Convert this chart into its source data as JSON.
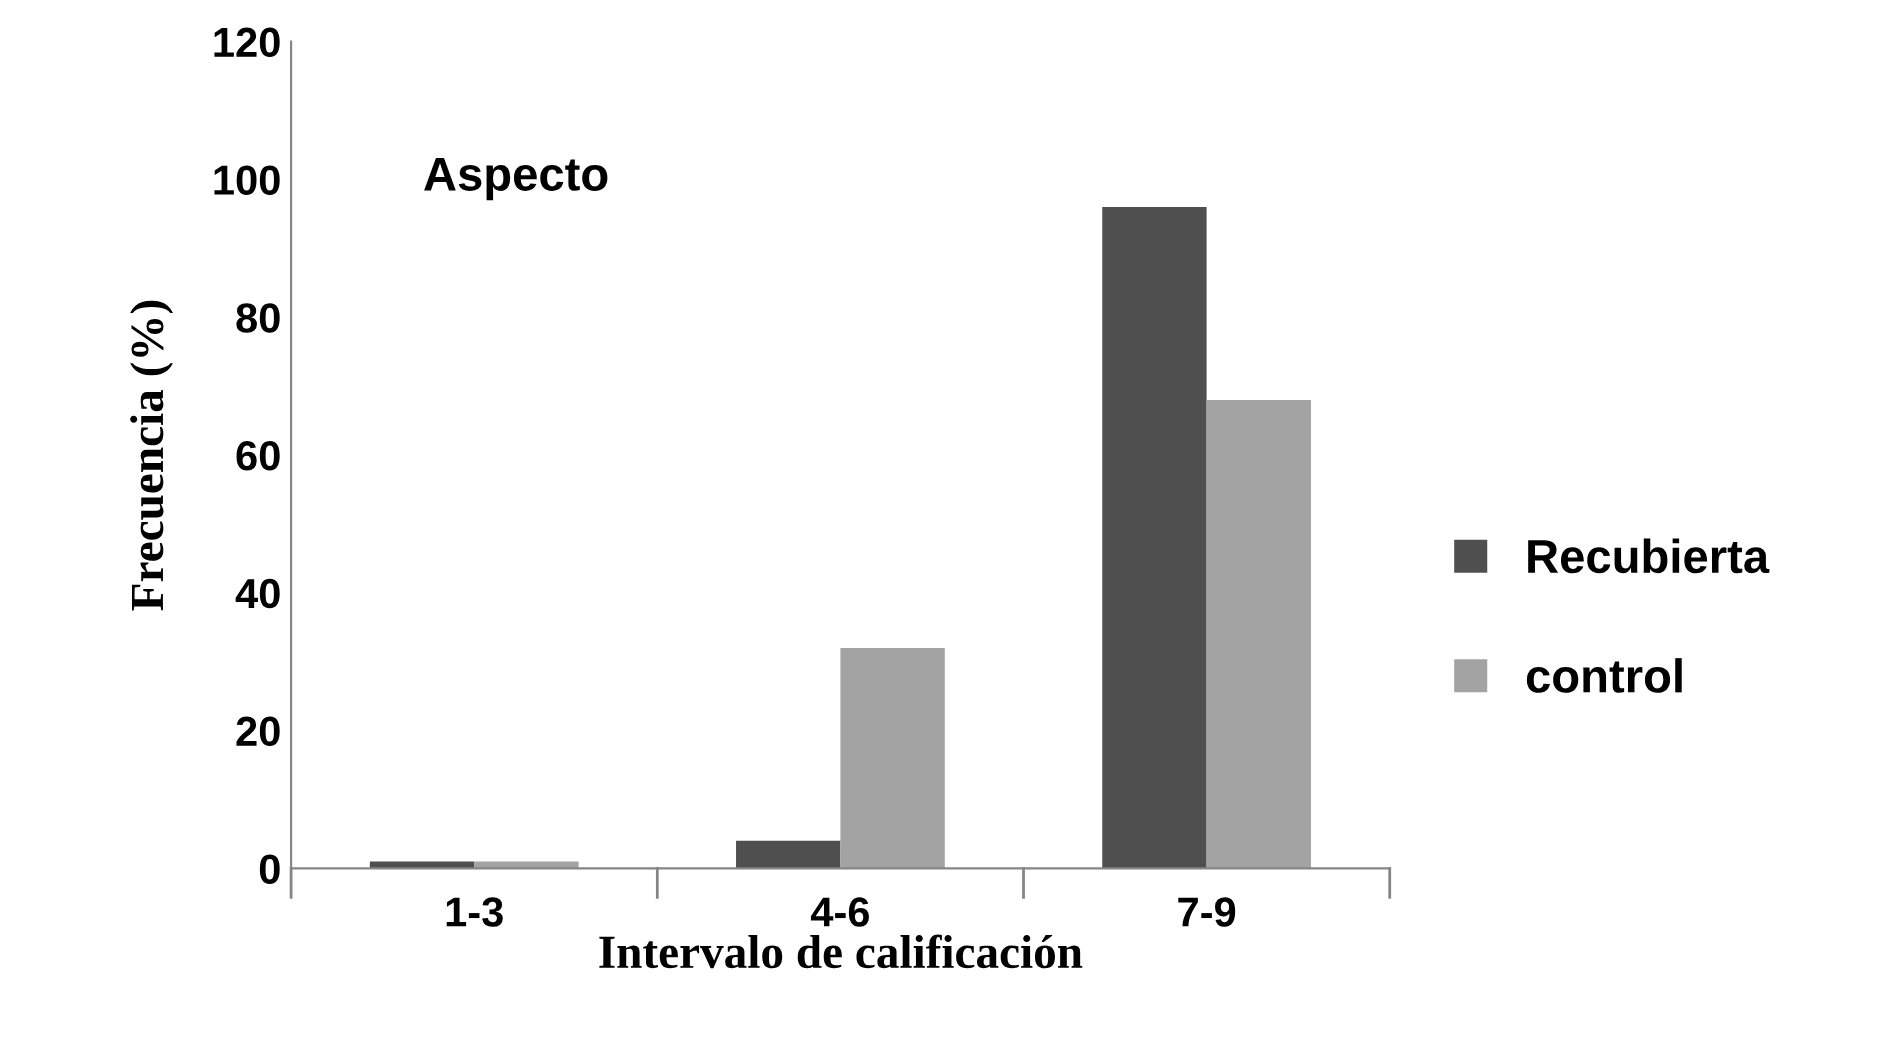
{
  "chart_data": {
    "type": "bar",
    "xlabel": "Intervalo de calificación",
    "ylabel": "Frecuencia (%)",
    "annotations": [
      "Aspecto"
    ],
    "categories": [
      "1-3",
      "4-6",
      "7-9"
    ],
    "series": [
      {
        "name": "Recubierta",
        "color": "#4f4f4f",
        "values": [
          1,
          4,
          96
        ]
      },
      {
        "name": "control",
        "color": "#a3a3a3",
        "values": [
          1,
          32,
          68
        ]
      }
    ],
    "ylim": [
      0,
      120
    ],
    "yticks": [
      0,
      20,
      40,
      60,
      80,
      100,
      120
    ],
    "grid": false,
    "legend": "right"
  }
}
